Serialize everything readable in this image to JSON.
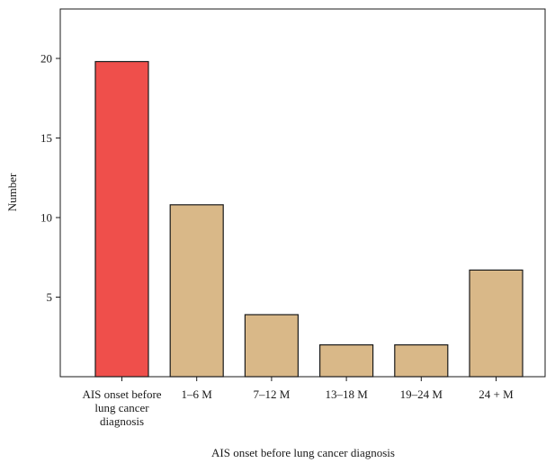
{
  "chart_data": {
    "type": "bar",
    "categories": [
      [
        "AIS onset before",
        "lung cancer",
        "diagnosis"
      ],
      [
        "1–6 M"
      ],
      [
        "7–12 M"
      ],
      [
        "13–18 M"
      ],
      [
        "19–24 M"
      ],
      [
        "24 + M"
      ]
    ],
    "values": [
      19.8,
      10.8,
      3.9,
      2.0,
      2.0,
      6.7
    ],
    "bar_colors": [
      "#ef4f4b",
      "#d9b888",
      "#d9b888",
      "#d9b888",
      "#d9b888",
      "#d9b888"
    ],
    "bar_edge_color": "#1a1a1a",
    "xlabel": "AIS onset before lung cancer diagnosis",
    "ylabel": "Number",
    "ylim": [
      0,
      23
    ],
    "yticks": [
      5,
      10,
      15,
      20
    ],
    "grid": false,
    "legend": "none"
  }
}
